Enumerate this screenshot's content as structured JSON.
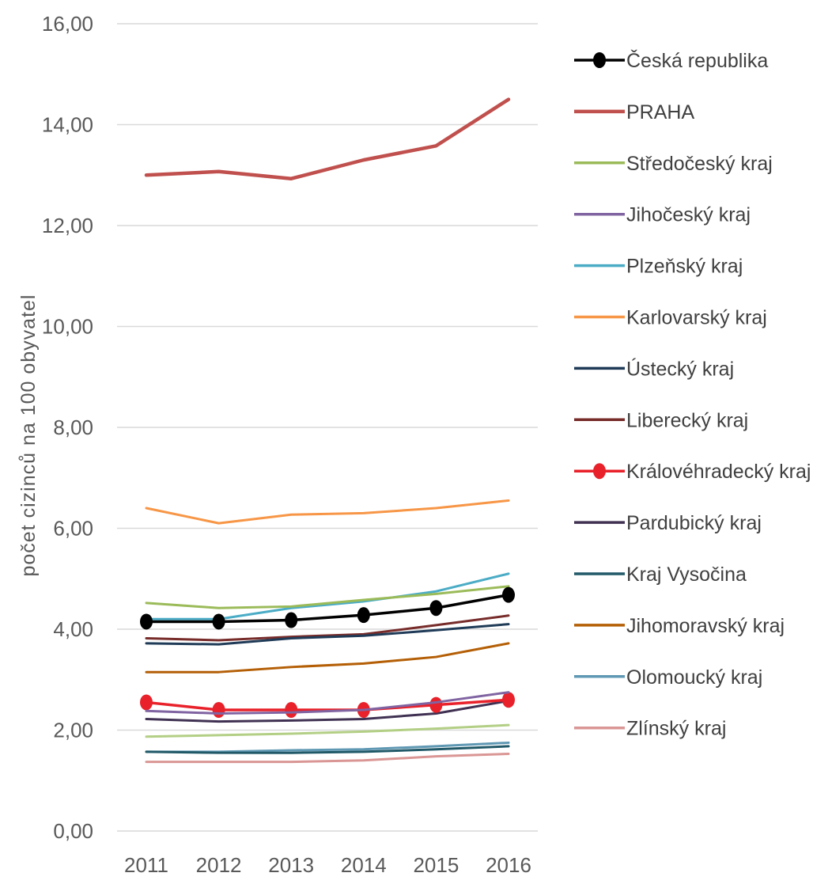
{
  "chart_data": {
    "type": "line",
    "title": "",
    "xlabel": "",
    "ylabel": "počet cizinců na 100 obyvatel",
    "x": [
      "2011",
      "2012",
      "2013",
      "2014",
      "2015",
      "2016"
    ],
    "ylim": [
      0,
      16
    ],
    "yticks": [
      "0,00",
      "2,00",
      "4,00",
      "6,00",
      "8,00",
      "10,00",
      "12,00",
      "14,00",
      "16,00"
    ],
    "grid": "horizontal",
    "legend": "right",
    "series": [
      {
        "name": "Česká republika",
        "color": "#000000",
        "marker": true,
        "values": [
          4.15,
          4.15,
          4.18,
          4.28,
          4.42,
          4.68
        ]
      },
      {
        "name": "PRAHA",
        "color": "#c0504d",
        "marker": false,
        "values": [
          13.0,
          13.07,
          12.93,
          13.3,
          13.58,
          14.5
        ]
      },
      {
        "name": "Středočeský kraj",
        "color": "#9bbb59",
        "marker": false,
        "values": [
          4.52,
          4.42,
          4.45,
          4.58,
          4.7,
          4.85
        ]
      },
      {
        "name": "Jihočeský kraj",
        "color": "#8064a2",
        "marker": false,
        "values": [
          2.38,
          2.33,
          2.35,
          2.4,
          2.55,
          2.75
        ]
      },
      {
        "name": "Plzeňský kraj",
        "color": "#4bacc6",
        "marker": false,
        "values": [
          4.2,
          4.2,
          4.42,
          4.55,
          4.75,
          5.1
        ]
      },
      {
        "name": "Karlovarský kraj",
        "color": "#f79646",
        "marker": false,
        "values": [
          6.4,
          6.1,
          6.27,
          6.3,
          6.4,
          6.55
        ]
      },
      {
        "name": "Ústecký kraj",
        "color": "#1f3b57",
        "marker": false,
        "values": [
          3.72,
          3.7,
          3.82,
          3.87,
          3.98,
          4.1
        ]
      },
      {
        "name": "Liberecký kraj",
        "color": "#772c2a",
        "marker": false,
        "values": [
          3.82,
          3.78,
          3.85,
          3.9,
          4.08,
          4.27
        ]
      },
      {
        "name": "Královéhradecký kraj",
        "color": "#e8212a",
        "marker": true,
        "values": [
          2.55,
          2.4,
          2.4,
          2.4,
          2.5,
          2.6
        ]
      },
      {
        "name": "Pardubický kraj",
        "color": "#403152",
        "marker": false,
        "values": [
          2.22,
          2.17,
          2.19,
          2.22,
          2.33,
          2.58
        ]
      },
      {
        "name": "Kraj Vysočina",
        "color": "#215968",
        "marker": false,
        "values": [
          1.57,
          1.55,
          1.55,
          1.57,
          1.62,
          1.68
        ]
      },
      {
        "name": "Jihomoravský kraj",
        "color": "#b45f06",
        "marker": false,
        "values": [
          3.15,
          3.15,
          3.25,
          3.32,
          3.45,
          3.72
        ]
      },
      {
        "name": "Olomoucký kraj",
        "color": "#5f98b3",
        "marker": false,
        "values": [
          1.57,
          1.57,
          1.6,
          1.62,
          1.68,
          1.75
        ]
      },
      {
        "name": "Zlínský kraj",
        "color": "#d99694",
        "marker": false,
        "values": [
          1.37,
          1.37,
          1.37,
          1.4,
          1.48,
          1.53
        ]
      },
      {
        "name": "Středočeský kraj",
        "color": "#b3cf85",
        "marker": false,
        "values": [
          1.87,
          1.9,
          1.93,
          1.97,
          2.03,
          2.1
        ]
      }
    ]
  }
}
